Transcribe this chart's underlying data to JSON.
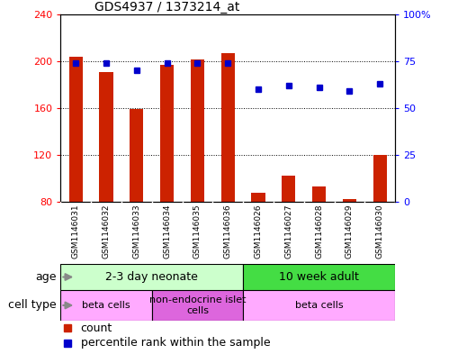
{
  "title": "GDS4937 / 1373214_at",
  "samples": [
    "GSM1146031",
    "GSM1146032",
    "GSM1146033",
    "GSM1146034",
    "GSM1146035",
    "GSM1146036",
    "GSM1146026",
    "GSM1146027",
    "GSM1146028",
    "GSM1146029",
    "GSM1146030"
  ],
  "bar_values": [
    204,
    191,
    159,
    197,
    201,
    207,
    88,
    102,
    93,
    82,
    120
  ],
  "percentile_values": [
    74,
    74,
    70,
    74,
    74,
    74,
    60,
    62,
    61,
    59,
    63
  ],
  "bar_bottom": 80,
  "ylim_left": [
    80,
    240
  ],
  "ylim_right": [
    0,
    100
  ],
  "yticks_left": [
    80,
    120,
    160,
    200,
    240
  ],
  "yticks_right": [
    0,
    25,
    50,
    75,
    100
  ],
  "yticklabels_right": [
    "0",
    "25",
    "50",
    "75",
    "100%"
  ],
  "bar_color": "#cc2200",
  "dot_color": "#0000cc",
  "grid_color": "#000000",
  "age_groups": [
    {
      "label": "2-3 day neonate",
      "start": 0,
      "end": 6,
      "color": "#ccffcc"
    },
    {
      "label": "10 week adult",
      "start": 6,
      "end": 11,
      "color": "#44dd44"
    }
  ],
  "cell_type_groups": [
    {
      "label": "beta cells",
      "start": 0,
      "end": 3,
      "color": "#ffaaff"
    },
    {
      "label": "non-endocrine islet\ncells",
      "start": 3,
      "end": 6,
      "color": "#dd66dd"
    },
    {
      "label": "beta cells",
      "start": 6,
      "end": 11,
      "color": "#ffaaff"
    }
  ],
  "legend_items": [
    {
      "color": "#cc2200",
      "label": "count"
    },
    {
      "color": "#0000cc",
      "label": "percentile rank within the sample"
    }
  ],
  "background_color": "#ffffff",
  "tick_label_area_color": "#cccccc"
}
